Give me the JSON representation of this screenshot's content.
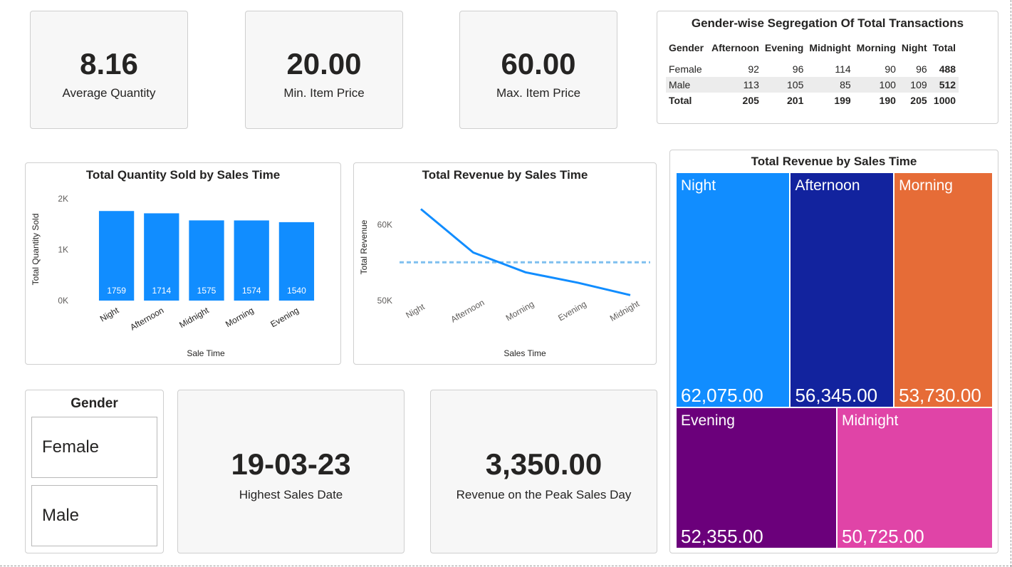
{
  "kpis": {
    "avg_quantity": {
      "value": "8.16",
      "label": "Average Quantity"
    },
    "min_price": {
      "value": "20.00",
      "label": "Min. Item Price"
    },
    "max_price": {
      "value": "60.00",
      "label": "Max. Item Price"
    },
    "highest_date": {
      "value": "19-03-23",
      "label": "Highest Sales Date"
    },
    "peak_revenue": {
      "value": "3,350.00",
      "label": "Revenue on the Peak Sales Day"
    }
  },
  "gender_table": {
    "title": "Gender-wise Segregation Of Total Transactions",
    "headers": [
      "Gender",
      "Afternoon",
      "Evening",
      "Midnight",
      "Morning",
      "Night",
      "Total"
    ],
    "rows": [
      {
        "gender": "Female",
        "values": [
          "92",
          "96",
          "114",
          "90",
          "96"
        ],
        "total": "488"
      },
      {
        "gender": "Male",
        "values": [
          "113",
          "105",
          "85",
          "100",
          "109"
        ],
        "total": "512"
      }
    ],
    "total_row": {
      "label": "Total",
      "values": [
        "205",
        "201",
        "199",
        "190",
        "205"
      ],
      "total": "1000"
    }
  },
  "slicer": {
    "title": "Gender",
    "items": [
      "Female",
      "Male"
    ]
  },
  "chart_data": [
    {
      "type": "bar",
      "title": "Total Quantity Sold by Sales Time",
      "xlabel": "Sale Time",
      "ylabel": "Total Quantity Sold",
      "categories": [
        "Night",
        "Afternoon",
        "Midnight",
        "Morning",
        "Evening"
      ],
      "values": [
        1759,
        1714,
        1575,
        1574,
        1540
      ],
      "value_labels": [
        "1759",
        "1714",
        "1575",
        "1574",
        "1540"
      ],
      "ylim": [
        0,
        2000
      ],
      "yticks": [
        0,
        1000,
        2000
      ],
      "ytick_labels": [
        "0K",
        "1K",
        "2K"
      ],
      "color": "#118dff"
    },
    {
      "type": "line",
      "title": "Total Revenue by Sales Time",
      "xlabel": "Sales Time",
      "ylabel": "Total Revenue",
      "categories": [
        "Night",
        "Afternoon",
        "Morning",
        "Evening",
        "Midnight"
      ],
      "values": [
        62075,
        56345,
        53730,
        52355,
        50725
      ],
      "average": 55046,
      "ylim": [
        50000,
        62500
      ],
      "yticks": [
        50000,
        60000
      ],
      "ytick_labels": [
        "50K",
        "60K"
      ],
      "color": "#118dff",
      "avg_color": "#7fbfef"
    },
    {
      "type": "treemap",
      "title": "Total Revenue by Sales Time",
      "items": [
        {
          "label": "Night",
          "value": 62075,
          "display": "62,075.00",
          "color": "#118dff"
        },
        {
          "label": "Afternoon",
          "value": 56345,
          "display": "56,345.00",
          "color": "#12239e"
        },
        {
          "label": "Morning",
          "value": 53730,
          "display": "53,730.00",
          "color": "#e66c37"
        },
        {
          "label": "Evening",
          "value": 52355,
          "display": "52,355.00",
          "color": "#6b007b"
        },
        {
          "label": "Midnight",
          "value": 50725,
          "display": "50,725.00",
          "color": "#e044a7"
        }
      ]
    }
  ]
}
